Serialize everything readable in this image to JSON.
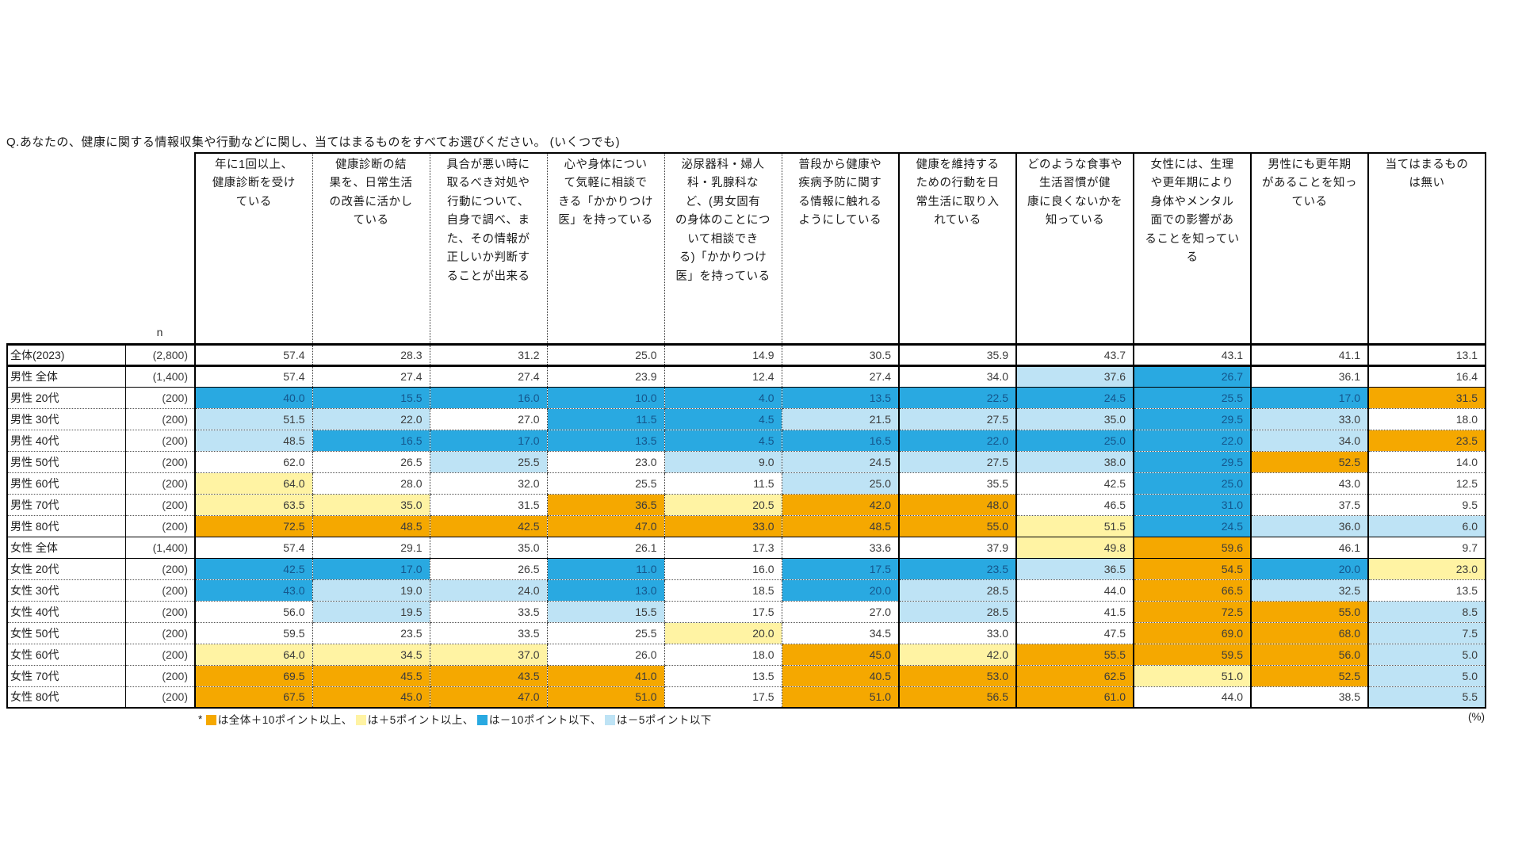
{
  "title": "Q.あなたの、健康に関する情報収集や行動などに関し、当てはまるものをすべてお選びください。 (いくつでも)",
  "colors": {
    "above10": "#F5A800",
    "above5": "#FFF3A3",
    "below10": "#29A9E1",
    "below5": "#BEE3F5",
    "below10_text": "#15568C"
  },
  "table": {
    "n_label": "n",
    "columns": [
      "年に1回以上、\n健康診断を受け\nている",
      "健康診断の結\n果を、日常生活\nの改善に活かし\nている",
      "具合が悪い時に\n取るべき対処や\n行動について、\n自身で調べ、ま\nた、その情報が\n正しいか判断す\nることが出来る",
      "心や身体につい\nて気軽に相談で\nきる「かかりつけ\n医」を持っている",
      "泌尿器科・婦人\n科・乳腺科な\nど、(男女固有\nの身体のことにつ\nいて相談でき\nる)「かかりつけ\n医」を持っている",
      "普段から健康や\n疾病予防に関す\nる情報に触れる\nようにしている",
      "健康を維持する\nための行動を日\n常生活に取り入\nれている",
      "どのような食事や\n生活習慣が健\n康に良くないかを\n知っている",
      "女性には、生理\nや更年期により\n身体やメンタル\n面での影響があ\nることを知ってい\nる",
      "男性にも更年期\nがあることを知っ\nている",
      "当てはまるもの\nは無い"
    ],
    "rows": [
      {
        "label": "全体(2023)",
        "n": "(2,800)",
        "values": [
          "57.4",
          "28.3",
          "31.2",
          "25.0",
          "14.9",
          "30.5",
          "35.9",
          "43.7",
          "43.1",
          "41.1",
          "13.1"
        ],
        "colors": [
          "",
          "",
          "",
          "",
          "",
          "",
          "",
          "",
          "",
          "",
          ""
        ]
      },
      {
        "label": "男性 全体",
        "n": "(1,400)",
        "values": [
          "57.4",
          "27.4",
          "27.4",
          "23.9",
          "12.4",
          "27.4",
          "34.0",
          "37.6",
          "26.7",
          "36.1",
          "16.4"
        ],
        "colors": [
          "",
          "",
          "",
          "",
          "",
          "",
          "",
          "lb",
          "b",
          "",
          ""
        ]
      },
      {
        "label": "男性 20代",
        "n": "(200)",
        "values": [
          "40.0",
          "15.5",
          "16.0",
          "10.0",
          "4.0",
          "13.5",
          "22.5",
          "24.5",
          "25.5",
          "17.0",
          "31.5"
        ],
        "colors": [
          "b",
          "b",
          "b",
          "b",
          "b",
          "b",
          "b",
          "b",
          "b",
          "b",
          "o"
        ]
      },
      {
        "label": "男性 30代",
        "n": "(200)",
        "values": [
          "51.5",
          "22.0",
          "27.0",
          "11.5",
          "4.5",
          "21.5",
          "27.5",
          "35.0",
          "29.5",
          "33.0",
          "18.0"
        ],
        "colors": [
          "lb",
          "lb",
          "",
          "b",
          "b",
          "lb",
          "lb",
          "lb",
          "b",
          "lb",
          ""
        ]
      },
      {
        "label": "男性 40代",
        "n": "(200)",
        "values": [
          "48.5",
          "16.5",
          "17.0",
          "13.5",
          "4.5",
          "16.5",
          "22.0",
          "25.0",
          "22.0",
          "34.0",
          "23.5"
        ],
        "colors": [
          "lb",
          "b",
          "b",
          "b",
          "b",
          "b",
          "b",
          "b",
          "b",
          "lb",
          "o"
        ]
      },
      {
        "label": "男性 50代",
        "n": "(200)",
        "values": [
          "62.0",
          "26.5",
          "25.5",
          "23.0",
          "9.0",
          "24.5",
          "27.5",
          "38.0",
          "29.5",
          "52.5",
          "14.0"
        ],
        "colors": [
          "",
          "",
          "lb",
          "",
          "lb",
          "lb",
          "lb",
          "lb",
          "b",
          "o",
          ""
        ]
      },
      {
        "label": "男性 60代",
        "n": "(200)",
        "values": [
          "64.0",
          "28.0",
          "32.0",
          "25.5",
          "11.5",
          "25.0",
          "35.5",
          "42.5",
          "25.0",
          "43.0",
          "12.5"
        ],
        "colors": [
          "y",
          "",
          "",
          "",
          "",
          "lb",
          "",
          "",
          "b",
          "",
          ""
        ]
      },
      {
        "label": "男性 70代",
        "n": "(200)",
        "values": [
          "63.5",
          "35.0",
          "31.5",
          "36.5",
          "20.5",
          "42.0",
          "48.0",
          "46.5",
          "31.0",
          "37.5",
          "9.5"
        ],
        "colors": [
          "y",
          "y",
          "",
          "o",
          "y",
          "o",
          "o",
          "",
          "b",
          "",
          ""
        ]
      },
      {
        "label": "男性 80代",
        "n": "(200)",
        "values": [
          "72.5",
          "48.5",
          "42.5",
          "47.0",
          "33.0",
          "48.5",
          "55.0",
          "51.5",
          "24.5",
          "36.0",
          "6.0"
        ],
        "colors": [
          "o",
          "o",
          "o",
          "o",
          "o",
          "o",
          "o",
          "y",
          "b",
          "lb",
          "lb"
        ]
      },
      {
        "label": "女性 全体",
        "n": "(1,400)",
        "values": [
          "57.4",
          "29.1",
          "35.0",
          "26.1",
          "17.3",
          "33.6",
          "37.9",
          "49.8",
          "59.6",
          "46.1",
          "9.7"
        ],
        "colors": [
          "",
          "",
          "",
          "",
          "",
          "",
          "",
          "y",
          "o",
          "",
          ""
        ]
      },
      {
        "label": "女性 20代",
        "n": "(200)",
        "values": [
          "42.5",
          "17.0",
          "26.5",
          "11.0",
          "16.0",
          "17.5",
          "23.5",
          "36.5",
          "54.5",
          "20.0",
          "23.0"
        ],
        "colors": [
          "b",
          "b",
          "",
          "b",
          "",
          "b",
          "b",
          "lb",
          "o",
          "b",
          "y"
        ]
      },
      {
        "label": "女性 30代",
        "n": "(200)",
        "values": [
          "43.0",
          "19.0",
          "24.0",
          "13.0",
          "18.5",
          "20.0",
          "28.5",
          "44.0",
          "66.5",
          "32.5",
          "13.5"
        ],
        "colors": [
          "b",
          "lb",
          "lb",
          "b",
          "",
          "b",
          "lb",
          "",
          "o",
          "lb",
          ""
        ]
      },
      {
        "label": "女性 40代",
        "n": "(200)",
        "values": [
          "56.0",
          "19.5",
          "33.5",
          "15.5",
          "17.5",
          "27.0",
          "28.5",
          "41.5",
          "72.5",
          "55.0",
          "8.5"
        ],
        "colors": [
          "",
          "lb",
          "",
          "lb",
          "",
          "",
          "lb",
          "",
          "o",
          "o",
          "lb"
        ]
      },
      {
        "label": "女性 50代",
        "n": "(200)",
        "values": [
          "59.5",
          "23.5",
          "33.5",
          "25.5",
          "20.0",
          "34.5",
          "33.0",
          "47.5",
          "69.0",
          "68.0",
          "7.5"
        ],
        "colors": [
          "",
          "",
          "",
          "",
          "y",
          "",
          "",
          "",
          "o",
          "o",
          "lb"
        ]
      },
      {
        "label": "女性 60代",
        "n": "(200)",
        "values": [
          "64.0",
          "34.5",
          "37.0",
          "26.0",
          "18.0",
          "45.0",
          "42.0",
          "55.5",
          "59.5",
          "56.0",
          "5.0"
        ],
        "colors": [
          "y",
          "y",
          "y",
          "",
          "",
          "o",
          "y",
          "o",
          "o",
          "o",
          "lb"
        ]
      },
      {
        "label": "女性 70代",
        "n": "(200)",
        "values": [
          "69.5",
          "45.5",
          "43.5",
          "41.0",
          "13.5",
          "40.5",
          "53.0",
          "62.5",
          "51.0",
          "52.5",
          "5.0"
        ],
        "colors": [
          "o",
          "o",
          "o",
          "o",
          "",
          "o",
          "o",
          "o",
          "y",
          "o",
          "lb"
        ]
      },
      {
        "label": "女性 80代",
        "n": "(200)",
        "values": [
          "67.5",
          "45.0",
          "47.0",
          "51.0",
          "17.5",
          "51.0",
          "56.5",
          "61.0",
          "44.0",
          "38.5",
          "5.5"
        ],
        "colors": [
          "o",
          "o",
          "o",
          "o",
          "",
          "o",
          "o",
          "o",
          "",
          "",
          "lb"
        ]
      }
    ]
  },
  "legend": {
    "prefix": "*",
    "items": [
      {
        "color_key": "above10",
        "label": "は全体＋10ポイント以上、"
      },
      {
        "color_key": "above5",
        "label": "は＋5ポイント以上、"
      },
      {
        "color_key": "below10",
        "label": "は－10ポイント以下、"
      },
      {
        "color_key": "below5",
        "label": "は－5ポイント以下"
      }
    ],
    "unit": "(%)"
  }
}
